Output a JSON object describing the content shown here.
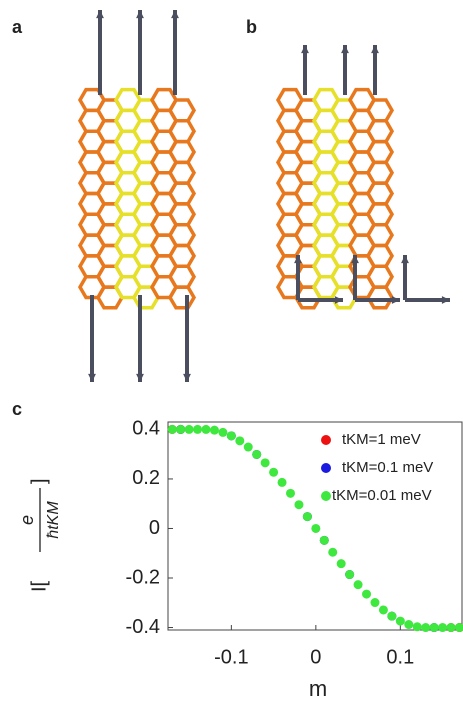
{
  "panel_labels": [
    "a",
    "b",
    "c"
  ],
  "chart_data": {
    "type": "scatter",
    "xlabel": "m",
    "ylabel": {
      "prefix": "I[",
      "numerator": "e",
      "denominator": "ħtKM",
      "suffix": "]"
    },
    "xlim": [
      -0.175,
      0.173
    ],
    "ylim": [
      -0.41,
      0.43
    ],
    "xticks": [
      -0.1,
      0,
      0.1
    ],
    "yticks": [
      0.4,
      0.2,
      0,
      -0.2,
      -0.4
    ],
    "series": [
      {
        "name": "tKM=1 meV",
        "color": "#ee1111",
        "x": [
          -0.17,
          -0.16,
          0.16,
          0.17
        ],
        "values": [
          0.4,
          0.4,
          -0.4,
          -0.4
        ]
      },
      {
        "name": "tKM=0.1 meV",
        "color": "#1a1ae0",
        "x": [
          -0.16,
          -0.1,
          -0.07,
          -0.01,
          0.01,
          0.04,
          0.09,
          0.14
        ],
        "values": [
          0.4,
          0.374,
          0.299,
          0.048,
          -0.048,
          -0.186,
          -0.354,
          -0.4
        ]
      },
      {
        "name": "tKM=0.01 meV",
        "color": "#3ee83e",
        "x": [
          -0.17,
          -0.16,
          -0.15,
          -0.14,
          -0.13,
          -0.12,
          -0.11,
          -0.1,
          -0.09,
          -0.08,
          -0.07,
          -0.06,
          -0.05,
          -0.04,
          -0.03,
          -0.02,
          -0.01,
          0,
          0.01,
          0.02,
          0.03,
          0.04,
          0.05,
          0.06,
          0.07,
          0.08,
          0.09,
          0.1,
          0.11,
          0.12,
          0.13,
          0.14,
          0.15,
          0.16,
          0.17
        ],
        "values": [
          0.4,
          0.4,
          0.4,
          0.4,
          0.4,
          0.397,
          0.388,
          0.374,
          0.354,
          0.329,
          0.299,
          0.265,
          0.227,
          0.186,
          0.142,
          0.096,
          0.048,
          0,
          -0.048,
          -0.096,
          -0.142,
          -0.186,
          -0.227,
          -0.265,
          -0.299,
          -0.329,
          -0.354,
          -0.374,
          -0.388,
          -0.397,
          -0.4,
          -0.4,
          -0.4,
          -0.4,
          -0.4
        ]
      }
    ]
  }
}
